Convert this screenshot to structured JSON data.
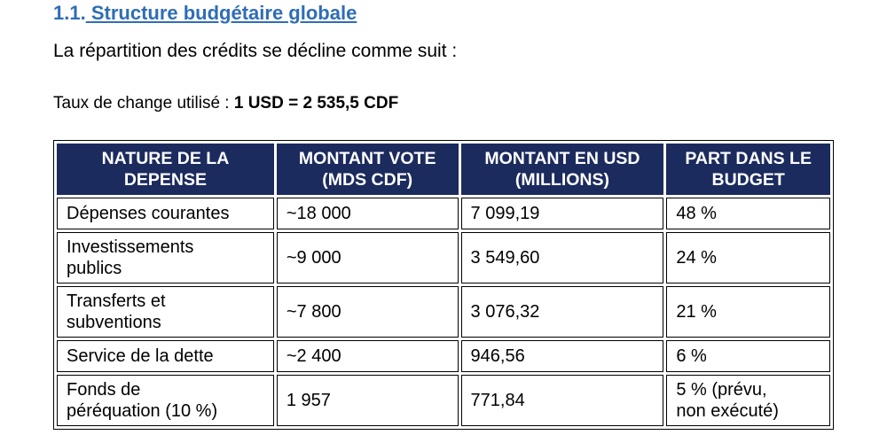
{
  "section": {
    "number": "1.1.",
    "title": "Structure budgétaire globale"
  },
  "intro": "La répartition des crédits se décline comme suit :",
  "exchange_rate": {
    "label": "Taux de change utilisé :",
    "value": "1 USD = 2 535,5 CDF"
  },
  "table": {
    "headers": [
      [
        "NATURE DE LA",
        "DEPENSE"
      ],
      [
        "MONTANT VOTE",
        "(MDS CDF)"
      ],
      [
        "MONTANT EN USD",
        "(MILLIONS)"
      ],
      [
        "PART DANS LE",
        "BUDGET"
      ]
    ],
    "rows": [
      {
        "nature": [
          "Dépenses courantes"
        ],
        "montant_vote": "~18 000",
        "montant_usd": "7 099,19",
        "part": [
          "48 %"
        ]
      },
      {
        "nature": [
          "Investissements",
          "publics"
        ],
        "montant_vote": "~9 000",
        "montant_usd": "3 549,60",
        "part": [
          "24 %"
        ]
      },
      {
        "nature": [
          "Transferts et",
          "subventions"
        ],
        "montant_vote": "~7 800",
        "montant_usd": "3 076,32",
        "part": [
          "21 %"
        ]
      },
      {
        "nature": [
          "Service de la dette"
        ],
        "montant_vote": "~2 400",
        "montant_usd": "946,56",
        "part": [
          "6 %"
        ]
      },
      {
        "nature": [
          "Fonds de",
          "péréquation (10 %)"
        ],
        "montant_vote": "1 957",
        "montant_usd": "771,84",
        "part": [
          "5 % (prévu,",
          "non exécuté)"
        ]
      }
    ]
  },
  "colors": {
    "heading": "#2f6db5",
    "table_header_bg": "#1b2b5e",
    "table_header_text": "#ffffff"
  }
}
